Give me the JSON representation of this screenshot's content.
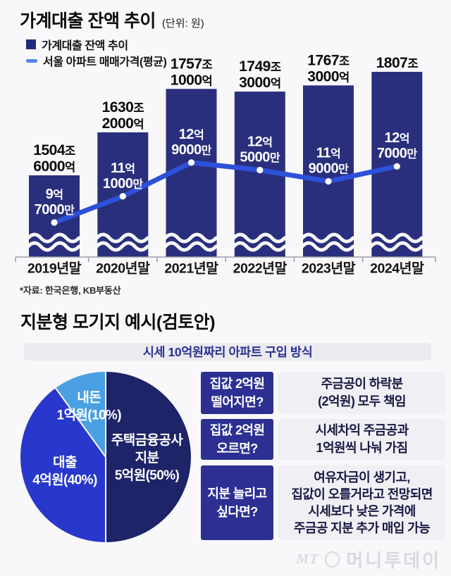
{
  "chart": {
    "title": "가계대출 잔액 추이",
    "unit": "(단위: 원)",
    "legend": [
      {
        "id": "bar-series",
        "label": "가계대출 잔액 추이",
        "color": "#232a7c"
      },
      {
        "id": "line-series",
        "label": "서울 아파트 매매가격(평균)",
        "color": "#4c86e0"
      }
    ],
    "source": "*자료: 한국은행, KB부동산"
  },
  "chart_data": [
    {
      "type": "bar",
      "title": "가계대출 잔액 추이",
      "categories": [
        "2019년말",
        "2020년말",
        "2021년말",
        "2022년말",
        "2023년말",
        "2024년말"
      ],
      "series": [
        {
          "name": "가계대출 잔액 추이",
          "type": "bar",
          "unit": "조 원",
          "values": [
            1504.6,
            1630.2,
            1757.1,
            1749.3,
            1767.3,
            1807
          ],
          "labels": [
            [
              "1504조",
              "6000억"
            ],
            [
              "1630조",
              "2000억"
            ],
            [
              "1757조",
              "1000억"
            ],
            [
              "1749조",
              "3000억"
            ],
            [
              "1767조",
              "3000억"
            ],
            [
              "1807조"
            ]
          ],
          "color": "#2a2f7d"
        },
        {
          "name": "서울 아파트 매매가격(평균)",
          "type": "line",
          "unit": "억 원",
          "values": [
            9.7,
            11.1,
            12.9,
            12.5,
            11.9,
            12.7
          ],
          "labels": [
            [
              "9억",
              "7000만"
            ],
            [
              "11억",
              "1000만"
            ],
            [
              "12억",
              "9000만"
            ],
            [
              "12억",
              "5000만"
            ],
            [
              "11억",
              "9000만"
            ],
            [
              "12억",
              "7000만"
            ]
          ],
          "color": "#2d51d8"
        }
      ],
      "axis_break": true,
      "grid": false,
      "legend_position": "top-left"
    },
    {
      "type": "pie",
      "title": "시세 10억원짜리 아파트 구입 방식",
      "segments": [
        {
          "name": "주택금융공사 지분",
          "amount": "5억원",
          "pct": 50,
          "color": "#1e2468",
          "label_lines": [
            "주택금융공사",
            "지분",
            "5억원(50%)"
          ]
        },
        {
          "name": "대출",
          "amount": "4억원",
          "pct": 40,
          "color": "#2838cc",
          "label_lines": [
            "대출",
            "4억원(40%)"
          ]
        },
        {
          "name": "내돈",
          "amount": "1억원",
          "pct": 10,
          "color": "#4aa0e2",
          "label_lines": [
            "내돈",
            "1억원(10%)"
          ]
        }
      ]
    }
  ],
  "mortgage": {
    "title": "지분형 모기지 예시(검토안)",
    "header": "시세 10억원짜리 아파트 구입 방식",
    "qa": [
      {
        "question": [
          "집값 2억원",
          "떨어지면?"
        ],
        "answer": [
          "주금공이 하락분",
          "(2억원) 모두 책임"
        ]
      },
      {
        "question": [
          "집값 2억원",
          "오르면?"
        ],
        "answer": [
          "시세차익 주금공과",
          "1억원씩 나눠 가짐"
        ]
      },
      {
        "question": [
          "지분 늘리고",
          "싶다면?"
        ],
        "answer": [
          "여유자금이 생기고,",
          "집값이 오를거라고 전망되면",
          "시세보다 낮은 가격에",
          "주금공 지분 추가 매입 가능"
        ]
      }
    ]
  },
  "footer": {
    "logo_mt": "MT",
    "logo_name": "머니투데이"
  }
}
